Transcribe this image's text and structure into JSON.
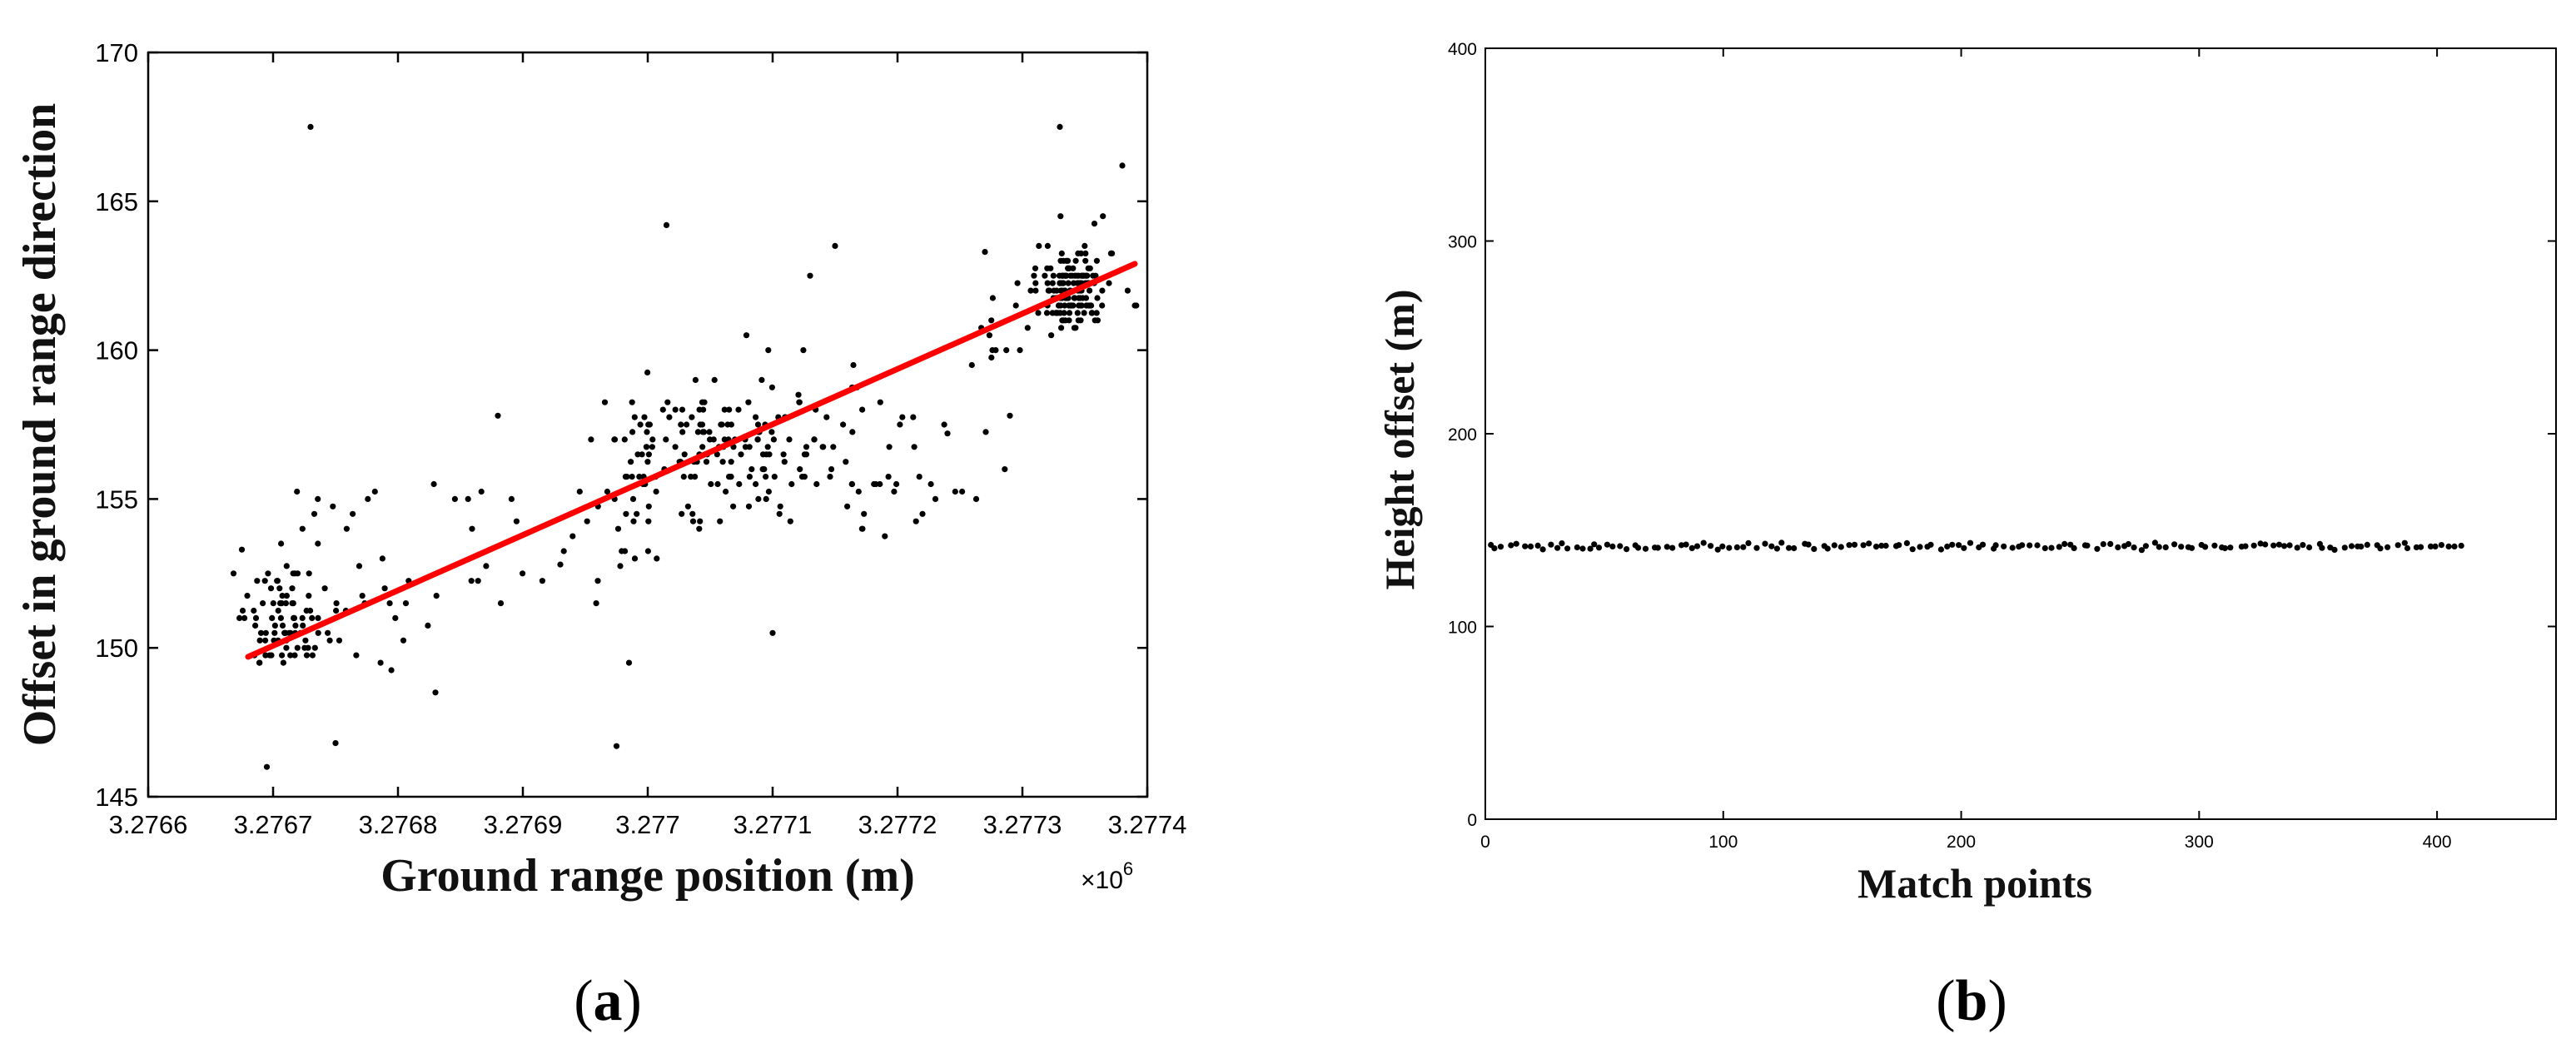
{
  "panels": [
    {
      "label_open": "(",
      "label_letter": "a",
      "label_close": ")"
    },
    {
      "label_open": "(",
      "label_letter": "b",
      "label_close": ")"
    }
  ],
  "colors": {
    "points": "#000000",
    "fit_line": "#ff0000",
    "axes": "#000000"
  },
  "chart_data": [
    {
      "type": "scatter",
      "title": "",
      "xlabel": "Ground range position (m)",
      "ylabel": "Offset in ground range direction",
      "x_multiplier_label": "×10",
      "x_multiplier_exponent": "6",
      "xlim": [
        3.2766,
        3.2774
      ],
      "ylim": [
        145,
        170
      ],
      "xticks": [
        "3.2766",
        "3.2767",
        "3.2768",
        "3.2769",
        "3.277",
        "3.2771",
        "3.2772",
        "3.2773",
        "3.2774"
      ],
      "xtick_values": [
        3.2766,
        3.2767,
        3.2768,
        3.2769,
        3.277,
        3.2771,
        3.2772,
        3.2773,
        3.2774
      ],
      "yticks": [
        "145",
        "150",
        "155",
        "160",
        "165",
        "170"
      ],
      "ytick_values": [
        145,
        150,
        155,
        160,
        165,
        170
      ],
      "grid": false,
      "fit_line": {
        "x": [
          3.27668,
          3.27739
        ],
        "y": [
          149.7,
          162.9
        ]
      },
      "clusters": [
        {
          "x_center": 3.27671,
          "x_spread": 2.5e-05,
          "y_center": 151.0,
          "y_spread": 1.3,
          "count": 70
        },
        {
          "x_center": 3.27675,
          "x_spread": 6e-05,
          "y_center": 152.2,
          "y_spread": 2.2,
          "count": 40
        },
        {
          "x_center": 3.27687,
          "x_spread": 4e-05,
          "y_center": 153.5,
          "y_spread": 2.0,
          "count": 16
        },
        {
          "x_center": 3.27699,
          "x_spread": 5e-05,
          "y_center": 155.3,
          "y_spread": 2.4,
          "count": 45
        },
        {
          "x_center": 3.27706,
          "x_spread": 6e-05,
          "y_center": 156.8,
          "y_spread": 1.7,
          "count": 110
        },
        {
          "x_center": 3.27713,
          "x_spread": 6e-05,
          "y_center": 157.0,
          "y_spread": 2.2,
          "count": 45
        },
        {
          "x_center": 3.27721,
          "x_spread": 5e-05,
          "y_center": 156.0,
          "y_spread": 2.0,
          "count": 22
        },
        {
          "x_center": 3.27729,
          "x_spread": 3e-05,
          "y_center": 160.9,
          "y_spread": 1.1,
          "count": 14
        },
        {
          "x_center": 3.27734,
          "x_spread": 2e-05,
          "y_center": 162.1,
          "y_spread": 0.9,
          "count": 130
        },
        {
          "x_center": 3.27735,
          "x_spread": 3e-05,
          "y_center": 163.0,
          "y_spread": 1.5,
          "count": 25
        }
      ],
      "points": [
        {
          "x": 3.27673,
          "y": 167.5
        },
        {
          "x": 3.27733,
          "y": 167.5
        },
        {
          "x": 3.277015,
          "y": 164.2
        },
        {
          "x": 3.27715,
          "y": 163.5
        },
        {
          "x": 3.27713,
          "y": 162.5
        },
        {
          "x": 3.27727,
          "y": 163.3
        },
        {
          "x": 3.27738,
          "y": 166.2
        },
        {
          "x": 3.27739,
          "y": 161.5
        },
        {
          "x": 3.276975,
          "y": 146.7
        },
        {
          "x": 3.276695,
          "y": 146.0
        },
        {
          "x": 3.27675,
          "y": 146.8
        },
        {
          "x": 3.27683,
          "y": 148.5
        },
        {
          "x": 3.276985,
          "y": 149.5
        },
        {
          "x": 3.2771,
          "y": 150.5
        },
        {
          "x": 3.276675,
          "y": 153.3
        },
        {
          "x": 3.27724,
          "y": 157.2
        },
        {
          "x": 3.27729,
          "y": 157.8
        },
        {
          "x": 3.27688,
          "y": 157.8
        },
        {
          "x": 3.27693,
          "y": 152.8
        },
        {
          "x": 3.27722,
          "y": 154.5
        }
      ]
    },
    {
      "type": "scatter",
      "title": "",
      "xlabel": "Match points",
      "ylabel": "Height offset (m)",
      "xlim": [
        0,
        450
      ],
      "ylim": [
        0,
        400
      ],
      "xticks": [
        "0",
        "100",
        "200",
        "300",
        "400"
      ],
      "xtick_values": [
        0,
        100,
        200,
        300,
        400
      ],
      "yticks": [
        "0",
        "100",
        "200",
        "300",
        "400"
      ],
      "ytick_values": [
        0,
        100,
        200,
        300,
        400
      ],
      "grid": false,
      "series_range": {
        "x_start": 2,
        "x_end": 410,
        "count": 150,
        "y_center": 141.5,
        "y_spread": 1.3
      }
    }
  ]
}
